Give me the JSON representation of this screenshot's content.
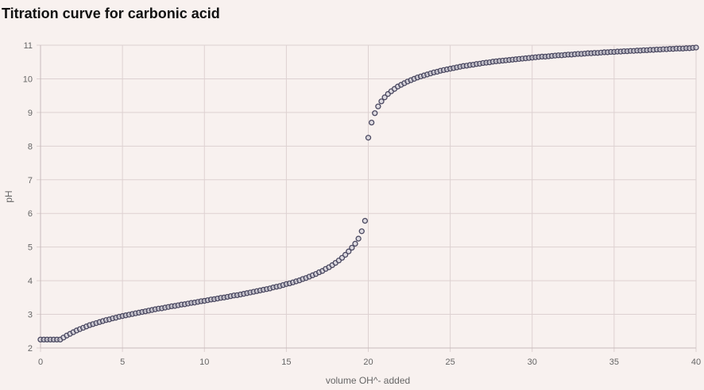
{
  "title": "Titration curve for carbonic acid",
  "chart_data": {
    "type": "scatter",
    "title": "Titration curve for carbonic acid",
    "xlabel": "volume OH^- added",
    "ylabel": "pH",
    "xlim": [
      0,
      40
    ],
    "ylim": [
      2,
      11
    ],
    "x_ticks": [
      "0",
      "5",
      "10",
      "15",
      "20",
      "25",
      "30",
      "35",
      "40"
    ],
    "y_ticks": [
      "2",
      "3",
      "4",
      "5",
      "6",
      "7",
      "8",
      "9",
      "10",
      "11"
    ],
    "grid": true,
    "legend": "none",
    "series": [
      {
        "marker": "circle",
        "color": "#4a4860",
        "points": [
          [
            0,
            2.25
          ],
          [
            0.2,
            2.25
          ],
          [
            0.4,
            2.25
          ],
          [
            0.6,
            2.25
          ],
          [
            0.8,
            2.25
          ],
          [
            1.0,
            2.25
          ],
          [
            1.2,
            2.25
          ],
          [
            1.4,
            2.31
          ],
          [
            1.6,
            2.37
          ],
          [
            1.8,
            2.42
          ],
          [
            2.0,
            2.47
          ],
          [
            2.2,
            2.52
          ],
          [
            2.4,
            2.56
          ],
          [
            2.6,
            2.6
          ],
          [
            2.8,
            2.64
          ],
          [
            3.0,
            2.68
          ],
          [
            3.2,
            2.71
          ],
          [
            3.4,
            2.74
          ],
          [
            3.6,
            2.77
          ],
          [
            3.8,
            2.8
          ],
          [
            4.0,
            2.83
          ],
          [
            4.2,
            2.85
          ],
          [
            4.4,
            2.88
          ],
          [
            4.6,
            2.9
          ],
          [
            4.8,
            2.93
          ],
          [
            5.0,
            2.95
          ],
          [
            5.2,
            2.97
          ],
          [
            5.4,
            2.99
          ],
          [
            5.6,
            3.01
          ],
          [
            5.8,
            3.03
          ],
          [
            6.0,
            3.05
          ],
          [
            6.2,
            3.07
          ],
          [
            6.4,
            3.09
          ],
          [
            6.6,
            3.11
          ],
          [
            6.8,
            3.13
          ],
          [
            7.0,
            3.15
          ],
          [
            7.2,
            3.17
          ],
          [
            7.4,
            3.18
          ],
          [
            7.6,
            3.2
          ],
          [
            7.8,
            3.22
          ],
          [
            8.0,
            3.24
          ],
          [
            8.2,
            3.25
          ],
          [
            8.4,
            3.27
          ],
          [
            8.6,
            3.29
          ],
          [
            8.8,
            3.3
          ],
          [
            9.0,
            3.32
          ],
          [
            9.2,
            3.34
          ],
          [
            9.4,
            3.35
          ],
          [
            9.6,
            3.37
          ],
          [
            9.8,
            3.39
          ],
          [
            10.0,
            3.4
          ],
          [
            10.2,
            3.42
          ],
          [
            10.4,
            3.44
          ],
          [
            10.6,
            3.45
          ],
          [
            10.8,
            3.47
          ],
          [
            11.0,
            3.49
          ],
          [
            11.2,
            3.5
          ],
          [
            11.4,
            3.52
          ],
          [
            11.6,
            3.54
          ],
          [
            11.8,
            3.56
          ],
          [
            12.0,
            3.57
          ],
          [
            12.2,
            3.59
          ],
          [
            12.4,
            3.61
          ],
          [
            12.6,
            3.63
          ],
          [
            12.8,
            3.65
          ],
          [
            13.0,
            3.67
          ],
          [
            13.2,
            3.69
          ],
          [
            13.4,
            3.71
          ],
          [
            13.6,
            3.73
          ],
          [
            13.8,
            3.75
          ],
          [
            14.0,
            3.77
          ],
          [
            14.2,
            3.8
          ],
          [
            14.4,
            3.82
          ],
          [
            14.6,
            3.84
          ],
          [
            14.8,
            3.87
          ],
          [
            15.0,
            3.9
          ],
          [
            15.2,
            3.92
          ],
          [
            15.4,
            3.95
          ],
          [
            15.6,
            3.98
          ],
          [
            15.8,
            4.01
          ],
          [
            16.0,
            4.05
          ],
          [
            16.2,
            4.08
          ],
          [
            16.4,
            4.12
          ],
          [
            16.6,
            4.16
          ],
          [
            16.8,
            4.2
          ],
          [
            17.0,
            4.25
          ],
          [
            17.2,
            4.29
          ],
          [
            17.4,
            4.35
          ],
          [
            17.6,
            4.4
          ],
          [
            17.8,
            4.46
          ],
          [
            18.0,
            4.53
          ],
          [
            18.2,
            4.6
          ],
          [
            18.4,
            4.68
          ],
          [
            18.6,
            4.77
          ],
          [
            18.8,
            4.87
          ],
          [
            19.0,
            4.98
          ],
          [
            19.2,
            5.1
          ],
          [
            19.4,
            5.25
          ],
          [
            19.6,
            5.47
          ],
          [
            19.8,
            5.78
          ],
          [
            20.0,
            8.25
          ],
          [
            20.2,
            8.7
          ],
          [
            20.4,
            8.98
          ],
          [
            20.6,
            9.18
          ],
          [
            20.8,
            9.33
          ],
          [
            21.0,
            9.45
          ],
          [
            21.2,
            9.55
          ],
          [
            21.4,
            9.63
          ],
          [
            21.6,
            9.7
          ],
          [
            21.8,
            9.77
          ],
          [
            22.0,
            9.82
          ],
          [
            22.2,
            9.87
          ],
          [
            22.4,
            9.92
          ],
          [
            22.6,
            9.96
          ],
          [
            22.8,
            10.0
          ],
          [
            23.0,
            10.04
          ],
          [
            23.2,
            10.07
          ],
          [
            23.4,
            10.1
          ],
          [
            23.6,
            10.13
          ],
          [
            23.8,
            10.16
          ],
          [
            24.0,
            10.19
          ],
          [
            24.2,
            10.21
          ],
          [
            24.4,
            10.24
          ],
          [
            24.6,
            10.26
          ],
          [
            24.8,
            10.28
          ],
          [
            25.0,
            10.3
          ],
          [
            25.2,
            10.32
          ],
          [
            25.4,
            10.34
          ],
          [
            25.6,
            10.36
          ],
          [
            25.8,
            10.38
          ],
          [
            26.0,
            10.39
          ],
          [
            26.2,
            10.41
          ],
          [
            26.4,
            10.42
          ],
          [
            26.6,
            10.44
          ],
          [
            26.8,
            10.45
          ],
          [
            27.0,
            10.47
          ],
          [
            27.2,
            10.48
          ],
          [
            27.4,
            10.49
          ],
          [
            27.6,
            10.51
          ],
          [
            27.8,
            10.52
          ],
          [
            28.0,
            10.53
          ],
          [
            28.2,
            10.54
          ],
          [
            28.4,
            10.55
          ],
          [
            28.6,
            10.56
          ],
          [
            28.8,
            10.57
          ],
          [
            29.0,
            10.58
          ],
          [
            29.2,
            10.59
          ],
          [
            29.4,
            10.6
          ],
          [
            29.6,
            10.61
          ],
          [
            29.8,
            10.62
          ],
          [
            30.0,
            10.63
          ],
          [
            30.2,
            10.64
          ],
          [
            30.4,
            10.65
          ],
          [
            30.6,
            10.66
          ],
          [
            30.8,
            10.66
          ],
          [
            31.0,
            10.67
          ],
          [
            31.2,
            10.68
          ],
          [
            31.4,
            10.69
          ],
          [
            31.6,
            10.7
          ],
          [
            31.8,
            10.7
          ],
          [
            32.0,
            10.71
          ],
          [
            32.2,
            10.72
          ],
          [
            32.4,
            10.72
          ],
          [
            32.6,
            10.73
          ],
          [
            32.8,
            10.74
          ],
          [
            33.0,
            10.74
          ],
          [
            33.2,
            10.75
          ],
          [
            33.4,
            10.76
          ],
          [
            33.6,
            10.76
          ],
          [
            33.8,
            10.77
          ],
          [
            34.0,
            10.77
          ],
          [
            34.2,
            10.78
          ],
          [
            34.4,
            10.79
          ],
          [
            34.6,
            10.79
          ],
          [
            34.8,
            10.8
          ],
          [
            35.0,
            10.8
          ],
          [
            35.2,
            10.81
          ],
          [
            35.4,
            10.81
          ],
          [
            35.6,
            10.82
          ],
          [
            35.8,
            10.82
          ],
          [
            36.0,
            10.83
          ],
          [
            36.2,
            10.83
          ],
          [
            36.4,
            10.84
          ],
          [
            36.6,
            10.84
          ],
          [
            36.8,
            10.85
          ],
          [
            37.0,
            10.85
          ],
          [
            37.2,
            10.86
          ],
          [
            37.4,
            10.86
          ],
          [
            37.6,
            10.87
          ],
          [
            37.8,
            10.87
          ],
          [
            38.0,
            10.88
          ],
          [
            38.2,
            10.88
          ],
          [
            38.4,
            10.89
          ],
          [
            38.6,
            10.89
          ],
          [
            38.8,
            10.9
          ],
          [
            39.0,
            10.9
          ],
          [
            39.2,
            10.9
          ],
          [
            39.4,
            10.91
          ],
          [
            39.6,
            10.91
          ],
          [
            39.8,
            10.92
          ],
          [
            40.0,
            10.93
          ]
        ]
      }
    ]
  }
}
